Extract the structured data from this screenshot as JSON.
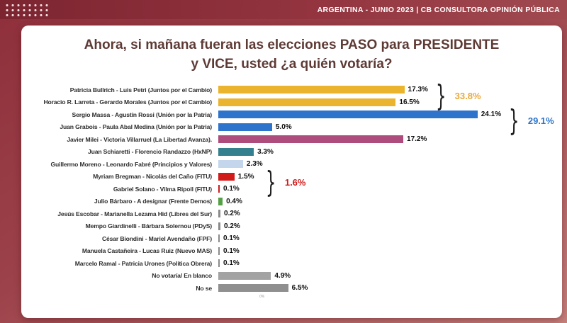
{
  "header": {
    "title": "ARGENTINA  - JUNIO 2023 | CB CONSULTORA OPINIÓN PÚBLICA"
  },
  "card": {
    "title_line1": "Ahora, si mañana fueran las elecciones PASO para PRESIDENTE",
    "title_line2": "y VICE, usted ¿a quién votaría?"
  },
  "chart_data": {
    "type": "bar",
    "orientation": "horizontal",
    "title": "Ahora, si mañana fueran las elecciones PASO para PRESIDENTE y VICE, usted ¿a quién votaría?",
    "axis_max": 24.1,
    "bar_scale_pct_of_area": 77,
    "axis_note": "0%",
    "rows": [
      {
        "label": "Patricia Bullrich - Luis Petri (Juntos por el Cambio)",
        "value": 17.3,
        "pct_label": "17.3%",
        "color": "#EAB42F"
      },
      {
        "label": "Horacio R. Larreta - Gerardo Morales (Juntos por el Cambio)",
        "value": 16.5,
        "pct_label": "16.5%",
        "color": "#EAB42F"
      },
      {
        "label": "Sergio Massa - Agustín Rossi (Unión por la Patria)",
        "value": 24.1,
        "pct_label": "24.1%",
        "color": "#2E74CC"
      },
      {
        "label": "Juan Grabois - Paula Abal Medina (Unión por la Patria)",
        "value": 5.0,
        "pct_label": "5.0%",
        "color": "#2E74CC"
      },
      {
        "label": "Javier Milei - Victoria Villarruel (La Libertad Avanza).",
        "value": 17.2,
        "pct_label": "17.2%",
        "color": "#AF4C7E"
      },
      {
        "label": "Juan Schiaretti - Florencio Randazzo (HxNP)",
        "value": 3.3,
        "pct_label": "3.3%",
        "color": "#35808E"
      },
      {
        "label": "Guillermo Moreno - Leonardo Fabré (Principios y Valores)",
        "value": 2.3,
        "pct_label": "2.3%",
        "color": "#C3D6EC"
      },
      {
        "label": "Myriam Bregman - Nicolás del Caño (FITU)",
        "value": 1.5,
        "pct_label": "1.5%",
        "color": "#D11A1A"
      },
      {
        "label": "Gabriel Solano - Vilma Ripoll (FITU)",
        "value": 0.1,
        "pct_label": "0.1%",
        "color": "#D11A1A"
      },
      {
        "label": "Julio Bárbaro - A designar (Frente Demos)",
        "value": 0.4,
        "pct_label": "0.4%",
        "color": "#55A046"
      },
      {
        "label": "Jesús Escobar - Marianella Lezama Hid (Libres del Sur)",
        "value": 0.2,
        "pct_label": "0.2%",
        "color": "#8A8A8A"
      },
      {
        "label": "Mempo Giardinelli - Bárbara Solernou (PDyS)",
        "value": 0.2,
        "pct_label": "0.2%",
        "color": "#8A8A8A"
      },
      {
        "label": "César Biondini - Mariel Avendaño (FPF)",
        "value": 0.1,
        "pct_label": "0.1%",
        "color": "#8A8A8A"
      },
      {
        "label": "Manuela Castañeira - Lucas Ruiz (Nuevo MAS)",
        "value": 0.1,
        "pct_label": "0.1%",
        "color": "#8A8A8A"
      },
      {
        "label": "Marcelo Ramal - Patricia Urones (Política Obrera)",
        "value": 0.1,
        "pct_label": "0.1%",
        "color": "#8A8A8A"
      },
      {
        "label": "No votaría/ En blanco",
        "value": 4.9,
        "pct_label": "4.9%",
        "color": "#A3A3A3"
      },
      {
        "label": "No se",
        "value": 6.5,
        "pct_label": "6.5%",
        "color": "#8F8F8F"
      }
    ],
    "groups": [
      {
        "rows": [
          0,
          1
        ],
        "label": "33.8%",
        "color": "#E9A93B"
      },
      {
        "rows": [
          2,
          3
        ],
        "label": "29.1%",
        "color": "#2E74C9"
      },
      {
        "rows": [
          7,
          8
        ],
        "label": "1.6%",
        "color": "#D11A1A"
      }
    ]
  }
}
